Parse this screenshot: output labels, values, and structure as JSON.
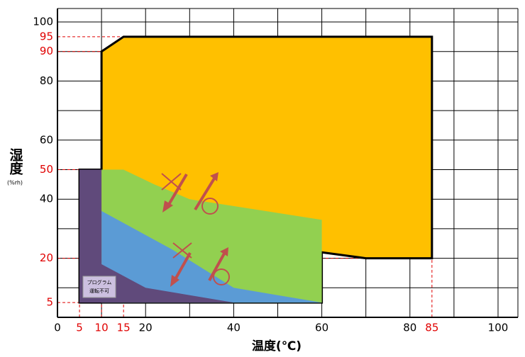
{
  "chart_data": {
    "type": "area-range",
    "xlabel": "温度(℃)",
    "ylabel": "湿度",
    "ylabel_unit": "(%rh)",
    "xlim": [
      0,
      100
    ],
    "ylim": [
      0,
      100
    ],
    "xticks": [
      0,
      20,
      40,
      60,
      80,
      100
    ],
    "yticks": [
      40,
      60,
      80,
      100
    ],
    "xticks_marked": [
      5,
      10,
      15,
      85
    ],
    "yticks_marked": [
      5,
      20,
      50,
      90,
      95
    ],
    "marked_color": "#e00000",
    "xgrid": [
      10,
      20,
      30,
      40,
      50,
      60,
      70,
      80,
      90,
      100
    ],
    "ygrid": [
      10,
      20,
      30,
      40,
      50,
      60,
      70,
      80,
      90,
      100
    ],
    "regions": [
      {
        "name": "orange",
        "color": "#ffc000",
        "outline": true,
        "points": [
          [
            5,
            5
          ],
          [
            5,
            50
          ],
          [
            10,
            50
          ],
          [
            10,
            90
          ],
          [
            15,
            95
          ],
          [
            85,
            95
          ],
          [
            85,
            20
          ],
          [
            70,
            20
          ],
          [
            60,
            22
          ],
          [
            60,
            5
          ]
        ]
      },
      {
        "name": "green",
        "color": "#92d050",
        "outline": false,
        "points": [
          [
            10,
            50
          ],
          [
            15,
            50
          ],
          [
            22,
            45
          ],
          [
            30,
            40
          ],
          [
            60,
            33
          ],
          [
            60,
            5
          ],
          [
            10,
            5
          ]
        ]
      },
      {
        "name": "blue",
        "color": "#5b9bd5",
        "outline": false,
        "points": [
          [
            10,
            36
          ],
          [
            26,
            23
          ],
          [
            40,
            10
          ],
          [
            60,
            5
          ],
          [
            10,
            5
          ]
        ]
      },
      {
        "name": "purple",
        "color": "#604a7b",
        "outline": false,
        "points": [
          [
            5,
            5
          ],
          [
            5,
            50
          ],
          [
            10,
            50
          ],
          [
            10,
            18
          ],
          [
            20,
            10
          ],
          [
            40,
            5
          ]
        ]
      }
    ],
    "note": [
      "プログラム",
      "運転不可"
    ]
  }
}
